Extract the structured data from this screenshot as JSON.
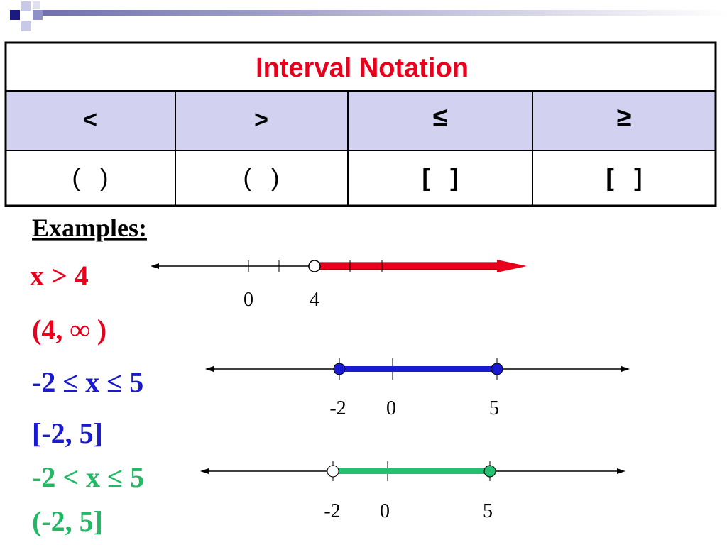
{
  "table": {
    "title": "Interval Notation",
    "headers": [
      "<",
      ">",
      "≤",
      "≥"
    ],
    "rows": [
      [
        "(   )",
        "(   )",
        "[   ]",
        "[   ]"
      ]
    ]
  },
  "examples": {
    "heading": "Examples:",
    "items": [
      {
        "inequality": "x > 4",
        "interval": "(4, ∞ )",
        "labels": [
          "0",
          "4"
        ]
      },
      {
        "inequality": "-2 ≤ x ≤ 5",
        "interval": "[-2, 5]",
        "labels": [
          "-2",
          "0",
          "5"
        ]
      },
      {
        "inequality": "-2 < x ≤ 5",
        "interval": "(-2, 5]",
        "labels": [
          "-2",
          "0",
          "5"
        ]
      }
    ]
  }
}
